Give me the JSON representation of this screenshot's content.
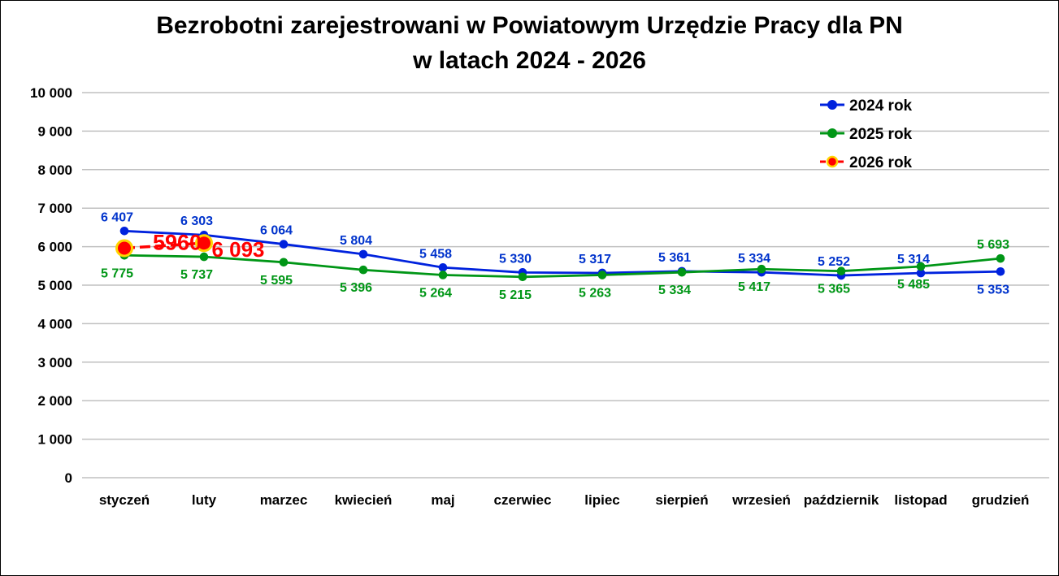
{
  "figure": {
    "title_line1": "Bezrobotni zarejestrowani w Powiatowym Urzędzie Pracy dla PN",
    "title_line2": "w latach 2024 - 2026"
  },
  "colors": {
    "series_2024": "#0022DD",
    "series_2024_label": "#0033CC",
    "series_2025": "#009616",
    "series_2026": "#FF0000",
    "series_2026_ring": "#FFD400",
    "gridline": "#C0C0C0",
    "axis_text": "#000000",
    "legend_text": "#000000",
    "background": "#FFFFFF"
  },
  "chart_data": {
    "type": "line",
    "title": "Bezrobotni zarejestrowani w Powiatowym Urzędzie Pracy dla PN w latach 2024 - 2026",
    "categories": [
      "styczeń",
      "luty",
      "marzec",
      "kwiecień",
      "maj",
      "czerwiec",
      "lipiec",
      "sierpień",
      "wrzesień",
      "październik",
      "listopad",
      "grudzień"
    ],
    "ylim": [
      0,
      10000
    ],
    "ytick_step": 1000,
    "ytick_labels": [
      "0",
      "1 000",
      "2 000",
      "3 000",
      "4 000",
      "5 000",
      "6 000",
      "7 000",
      "8 000",
      "9 000",
      "10 000"
    ],
    "grid": "horizontal",
    "legend_position": "top-right",
    "series": [
      {
        "name": "2024 rok",
        "color_key": "series_2024",
        "label_color_key": "series_2024_label",
        "line_style": "solid",
        "marker": "dot",
        "values": [
          6407,
          6303,
          6064,
          5804,
          5458,
          5330,
          5317,
          5361,
          5334,
          5252,
          5314,
          5353
        ],
        "labels": [
          "6 407",
          "6 303",
          "6 064",
          "5 804",
          "5 458",
          "5 330",
          "5 317",
          "5 361",
          "5 334",
          "5 252",
          "5 314",
          "5 353"
        ],
        "label_pos": [
          "above",
          "above",
          "above",
          "above",
          "above",
          "above",
          "above",
          "above",
          "above",
          "above",
          "above",
          "below"
        ]
      },
      {
        "name": "2025 rok",
        "color_key": "series_2025",
        "label_color_key": "series_2025",
        "line_style": "solid",
        "marker": "dot",
        "values": [
          5775,
          5737,
          5595,
          5396,
          5264,
          5215,
          5263,
          5334,
          5417,
          5365,
          5485,
          5693
        ],
        "labels": [
          "5 775",
          "5 737",
          "5 595",
          "5 396",
          "5 264",
          "5 215",
          "5 263",
          "5 334",
          "5 417",
          "5 365",
          "5 485",
          "5 693"
        ],
        "label_pos": [
          "below",
          "below",
          "below",
          "below",
          "below",
          "below",
          "below",
          "below",
          "below",
          "below",
          "below",
          "above"
        ]
      },
      {
        "name": "2026 rok",
        "color_key": "series_2026",
        "label_color_key": "series_2026",
        "line_style": "dashed",
        "marker": "big-ring",
        "values": [
          5960,
          6093,
          null,
          null,
          null,
          null,
          null,
          null,
          null,
          null,
          null,
          null
        ],
        "labels": [
          "5960",
          "6 093"
        ],
        "label_pos": [
          "between",
          "right"
        ]
      }
    ]
  }
}
